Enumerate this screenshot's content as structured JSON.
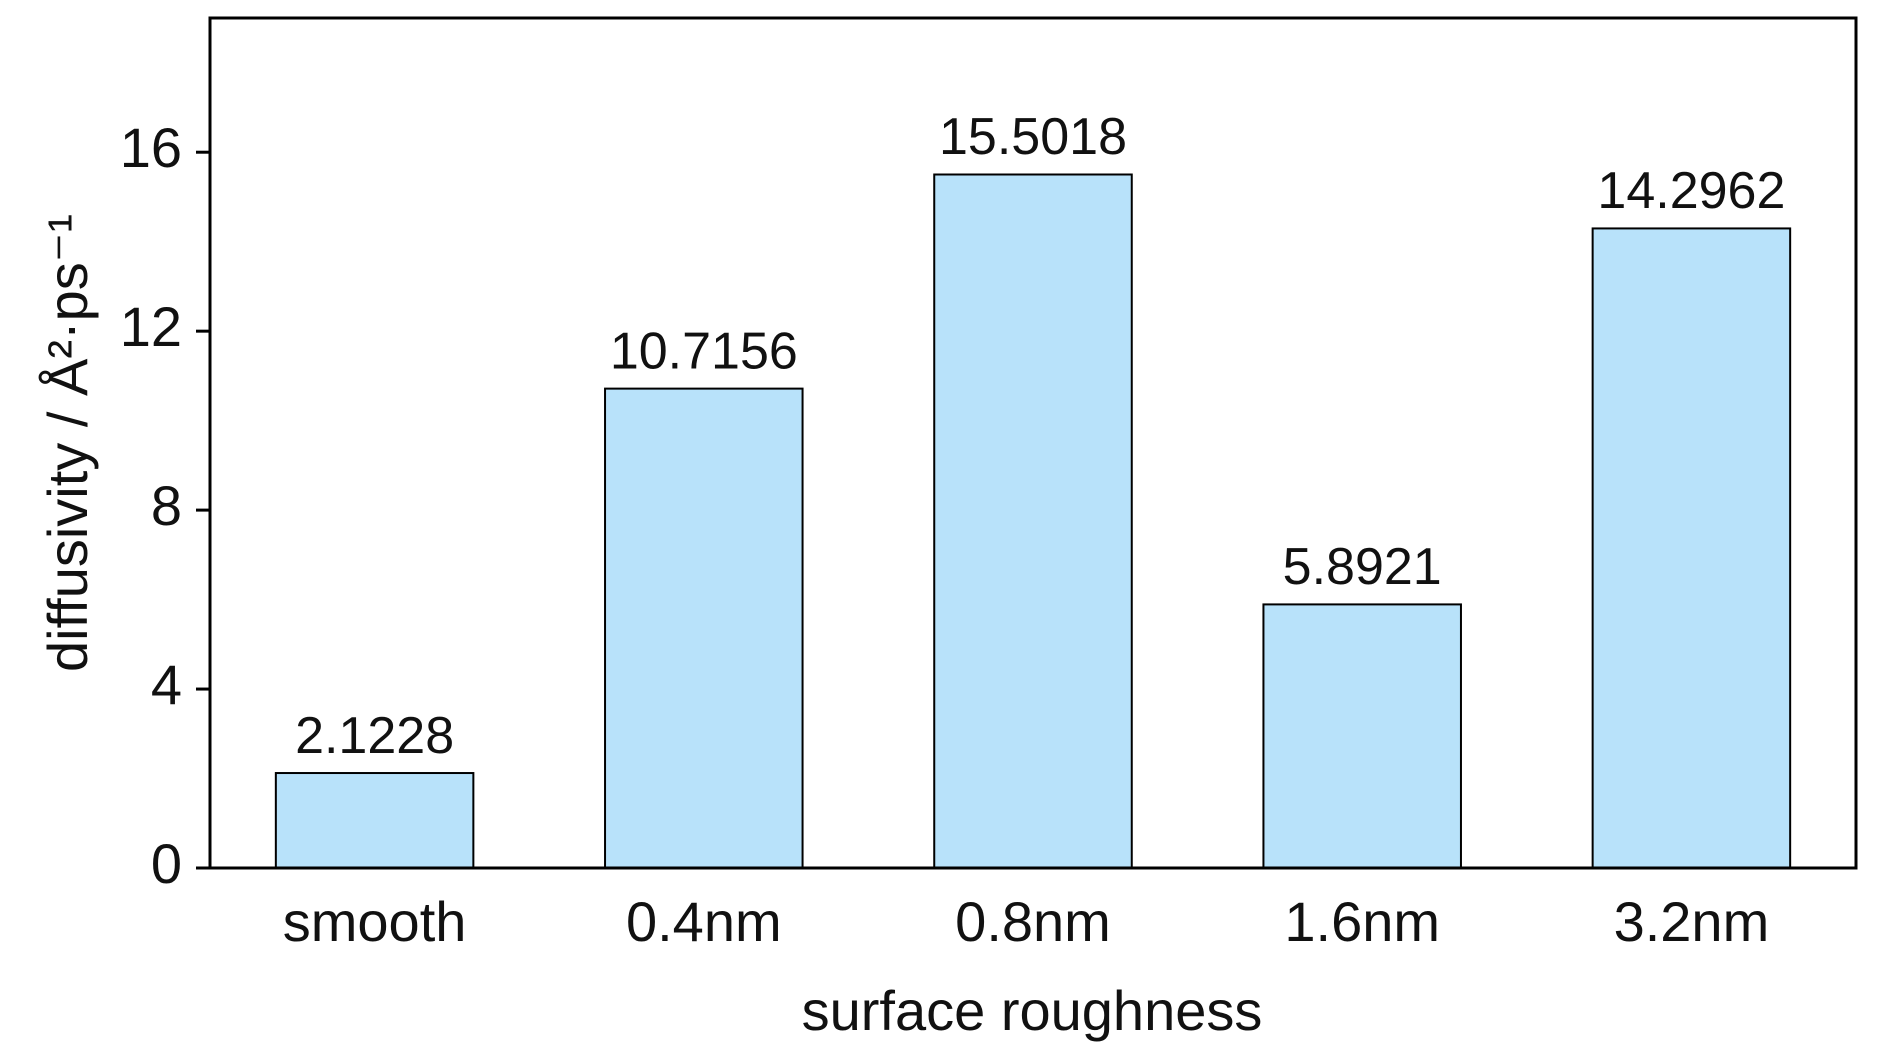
{
  "chart_data": {
    "type": "bar",
    "x_label": "surface roughness",
    "y_label": "diffusivity / Å²·ps⁻¹",
    "categories": [
      "smooth",
      "0.4nm",
      "0.8nm",
      "1.6nm",
      "3.2nm"
    ],
    "values": [
      2.1228,
      10.7156,
      15.5018,
      5.8921,
      14.2962
    ],
    "color": "#b8e2fa",
    "ylim": [
      0,
      19
    ],
    "yticks": [
      0,
      4,
      8,
      12,
      16
    ],
    "grid": false
  }
}
